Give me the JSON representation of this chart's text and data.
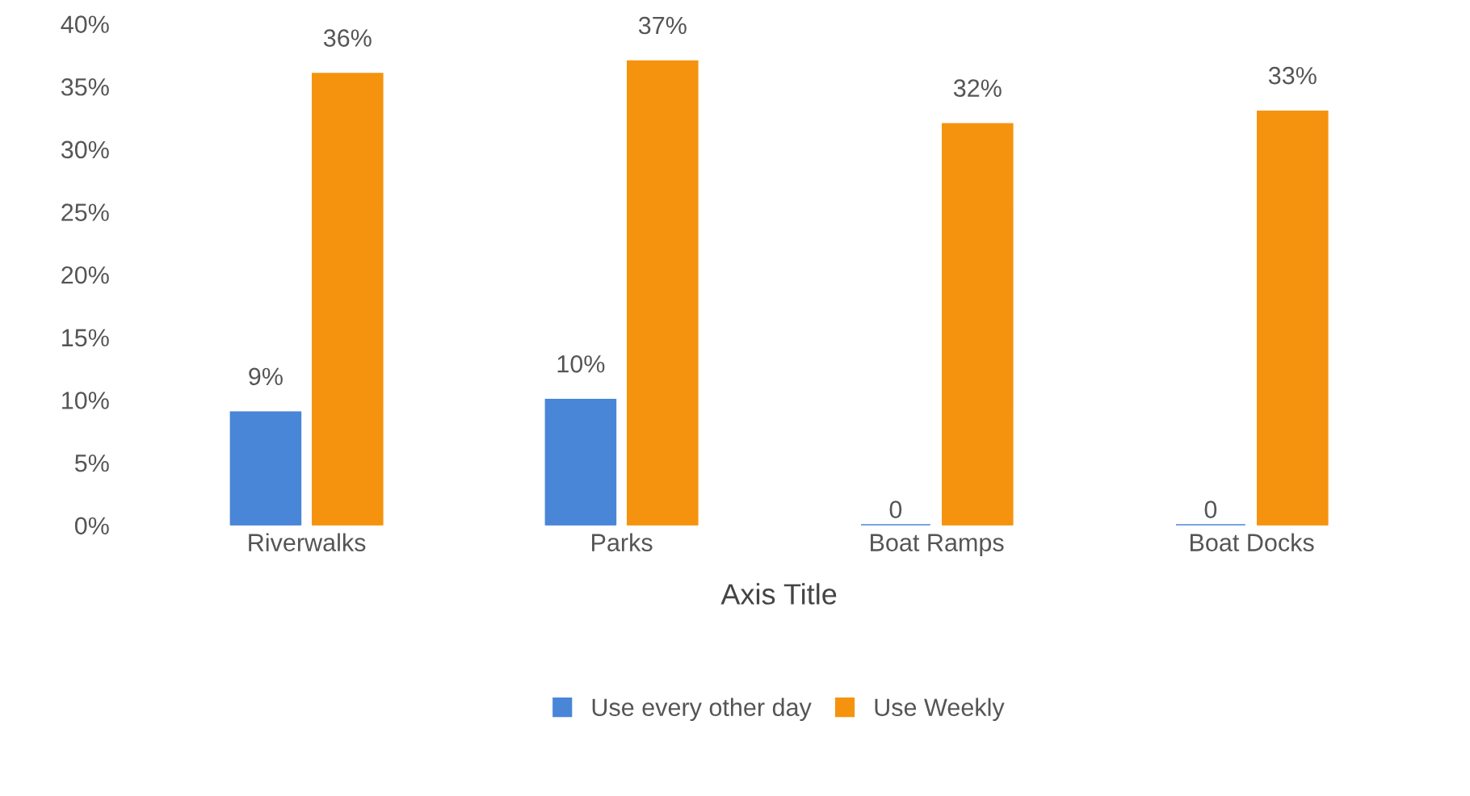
{
  "chart_data": {
    "type": "bar",
    "xlabel": "Axis Title",
    "categories": [
      "Riverwalks",
      "Parks",
      "Boat Ramps",
      "Boat Docks"
    ],
    "series": [
      {
        "name": "Use every other day",
        "color": "#4a86d8",
        "values": [
          9,
          10,
          0,
          0
        ],
        "value_labels": [
          "9%",
          "10%",
          "0",
          "0"
        ]
      },
      {
        "name": "Use Weekly",
        "color": "#f5930f",
        "values": [
          36,
          37,
          32,
          33
        ],
        "value_labels": [
          "36%",
          "37%",
          "32%",
          "33%"
        ]
      }
    ],
    "ylim": [
      0,
      40
    ],
    "yticks": [
      {
        "value": 0,
        "label": "0%"
      },
      {
        "value": 5,
        "label": "5%"
      },
      {
        "value": 10,
        "label": "10%"
      },
      {
        "value": 15,
        "label": "15%"
      },
      {
        "value": 20,
        "label": "20%"
      },
      {
        "value": 25,
        "label": "25%"
      },
      {
        "value": 30,
        "label": "30%"
      },
      {
        "value": 35,
        "label": "35%"
      },
      {
        "value": 40,
        "label": "40%"
      }
    ],
    "grid": false,
    "legend": "bottom"
  }
}
